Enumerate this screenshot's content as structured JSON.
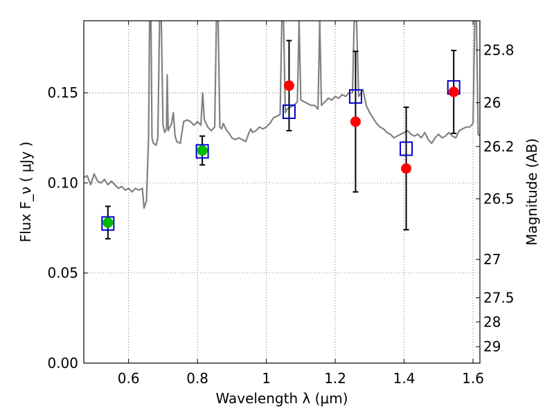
{
  "chart_data": {
    "type": "scatter",
    "title": "",
    "xlabel": "Wavelength  λ (μm)",
    "ylabel": "Flux  F_ν  ( μJy )",
    "ylabel_right": "Magnitude (AB)",
    "xlim": [
      0.47,
      1.62
    ],
    "ylim": [
      0.0,
      0.19
    ],
    "grid": true,
    "x_ticks": [
      0.6,
      0.8,
      1.0,
      1.2,
      1.4,
      1.6
    ],
    "x_tick_labels": [
      "0.6",
      "0.8",
      "1",
      "1.2",
      "1.4",
      "1.6"
    ],
    "y_ticks": [
      0.0,
      0.05,
      0.1,
      0.15
    ],
    "y_tick_labels": [
      "0.00",
      "0.05",
      "0.10",
      "0.15"
    ],
    "right_ticks": [
      25.8,
      26.0,
      26.2,
      26.5,
      27.0,
      27.5,
      28.0,
      29.0
    ],
    "right_tick_labels": [
      "25.8",
      "26",
      "26.2",
      "26.5",
      "27",
      "27.5",
      "28",
      "29"
    ],
    "colors": {
      "sed": "#808080",
      "observed_optical": "#00bb00",
      "observed_nir": "#ff0000",
      "model_box": "#0000cc",
      "errorbar": "#000000",
      "grid": "#555555"
    },
    "series": [
      {
        "kind": "line",
        "description": "template SED",
        "points": [
          [
            0.47,
            0.103
          ],
          [
            0.48,
            0.104
          ],
          [
            0.49,
            0.099
          ],
          [
            0.5,
            0.105
          ],
          [
            0.51,
            0.101
          ],
          [
            0.52,
            0.1
          ],
          [
            0.53,
            0.102
          ],
          [
            0.54,
            0.099
          ],
          [
            0.55,
            0.101
          ],
          [
            0.56,
            0.099
          ],
          [
            0.57,
            0.097
          ],
          [
            0.58,
            0.098
          ],
          [
            0.59,
            0.096
          ],
          [
            0.6,
            0.097
          ],
          [
            0.61,
            0.095
          ],
          [
            0.62,
            0.097
          ],
          [
            0.63,
            0.096
          ],
          [
            0.64,
            0.097
          ],
          [
            0.645,
            0.086
          ],
          [
            0.652,
            0.09
          ],
          [
            0.658,
            0.125
          ],
          [
            0.661,
            0.19
          ],
          [
            0.665,
            0.19
          ],
          [
            0.668,
            0.125
          ],
          [
            0.672,
            0.122
          ],
          [
            0.68,
            0.121
          ],
          [
            0.685,
            0.125
          ],
          [
            0.69,
            0.19
          ],
          [
            0.695,
            0.19
          ],
          [
            0.7,
            0.132
          ],
          [
            0.705,
            0.128
          ],
          [
            0.71,
            0.13
          ],
          [
            0.712,
            0.16
          ],
          [
            0.715,
            0.129
          ],
          [
            0.72,
            0.131
          ],
          [
            0.725,
            0.133
          ],
          [
            0.73,
            0.139
          ],
          [
            0.735,
            0.126
          ],
          [
            0.74,
            0.123
          ],
          [
            0.75,
            0.122
          ],
          [
            0.76,
            0.134
          ],
          [
            0.77,
            0.135
          ],
          [
            0.78,
            0.134
          ],
          [
            0.79,
            0.132
          ],
          [
            0.8,
            0.134
          ],
          [
            0.81,
            0.132
          ],
          [
            0.815,
            0.15
          ],
          [
            0.82,
            0.135
          ],
          [
            0.83,
            0.131
          ],
          [
            0.84,
            0.129
          ],
          [
            0.85,
            0.131
          ],
          [
            0.855,
            0.19
          ],
          [
            0.86,
            0.19
          ],
          [
            0.865,
            0.131
          ],
          [
            0.87,
            0.13
          ],
          [
            0.875,
            0.133
          ],
          [
            0.88,
            0.131
          ],
          [
            0.885,
            0.129
          ],
          [
            0.89,
            0.128
          ],
          [
            0.9,
            0.125
          ],
          [
            0.91,
            0.124
          ],
          [
            0.92,
            0.125
          ],
          [
            0.93,
            0.124
          ],
          [
            0.94,
            0.123
          ],
          [
            0.95,
            0.128
          ],
          [
            0.955,
            0.13
          ],
          [
            0.96,
            0.128
          ],
          [
            0.97,
            0.129
          ],
          [
            0.98,
            0.131
          ],
          [
            0.99,
            0.13
          ],
          [
            1.0,
            0.131
          ],
          [
            1.01,
            0.133
          ],
          [
            1.02,
            0.136
          ],
          [
            1.03,
            0.137
          ],
          [
            1.04,
            0.138
          ],
          [
            1.045,
            0.19
          ],
          [
            1.05,
            0.19
          ],
          [
            1.055,
            0.139
          ],
          [
            1.06,
            0.141
          ],
          [
            1.08,
            0.143
          ],
          [
            1.09,
            0.145
          ],
          [
            1.095,
            0.19
          ],
          [
            1.1,
            0.146
          ],
          [
            1.12,
            0.144
          ],
          [
            1.13,
            0.143
          ],
          [
            1.14,
            0.143
          ],
          [
            1.15,
            0.141
          ],
          [
            1.155,
            0.19
          ],
          [
            1.16,
            0.143
          ],
          [
            1.17,
            0.145
          ],
          [
            1.18,
            0.147
          ],
          [
            1.19,
            0.146
          ],
          [
            1.2,
            0.148
          ],
          [
            1.21,
            0.147
          ],
          [
            1.22,
            0.149
          ],
          [
            1.23,
            0.148
          ],
          [
            1.24,
            0.15
          ],
          [
            1.25,
            0.15
          ],
          [
            1.255,
            0.19
          ],
          [
            1.262,
            0.19
          ],
          [
            1.268,
            0.148
          ],
          [
            1.275,
            0.15
          ],
          [
            1.28,
            0.152
          ],
          [
            1.29,
            0.143
          ],
          [
            1.3,
            0.139
          ],
          [
            1.31,
            0.136
          ],
          [
            1.32,
            0.133
          ],
          [
            1.33,
            0.131
          ],
          [
            1.34,
            0.13
          ],
          [
            1.35,
            0.128
          ],
          [
            1.36,
            0.127
          ],
          [
            1.37,
            0.125
          ],
          [
            1.38,
            0.126
          ],
          [
            1.39,
            0.127
          ],
          [
            1.4,
            0.128
          ],
          [
            1.41,
            0.129
          ],
          [
            1.42,
            0.127
          ],
          [
            1.43,
            0.126
          ],
          [
            1.44,
            0.127
          ],
          [
            1.45,
            0.125
          ],
          [
            1.46,
            0.128
          ],
          [
            1.47,
            0.124
          ],
          [
            1.48,
            0.122
          ],
          [
            1.49,
            0.125
          ],
          [
            1.5,
            0.127
          ],
          [
            1.51,
            0.125
          ],
          [
            1.52,
            0.126
          ],
          [
            1.53,
            0.128
          ],
          [
            1.54,
            0.126
          ],
          [
            1.55,
            0.125
          ],
          [
            1.56,
            0.129
          ],
          [
            1.57,
            0.13
          ],
          [
            1.58,
            0.131
          ],
          [
            1.59,
            0.131
          ],
          [
            1.6,
            0.133
          ],
          [
            1.605,
            0.19
          ],
          [
            1.61,
            0.19
          ],
          [
            1.615,
            0.127
          ],
          [
            1.62,
            0.126
          ]
        ]
      },
      {
        "kind": "errorbar",
        "description": "observed optical",
        "marker": "circle",
        "points": [
          {
            "x": 0.54,
            "y": 0.078,
            "err": 0.009
          },
          {
            "x": 0.814,
            "y": 0.118,
            "err": 0.008
          }
        ]
      },
      {
        "kind": "errorbar",
        "description": "observed near-IR",
        "marker": "circle",
        "points": [
          {
            "x": 1.066,
            "y": 0.154,
            "err": 0.025
          },
          {
            "x": 1.259,
            "y": 0.134,
            "err": 0.039
          },
          {
            "x": 1.406,
            "y": 0.108,
            "err": 0.034
          },
          {
            "x": 1.544,
            "y": 0.1505,
            "err": 0.023
          }
        ]
      },
      {
        "kind": "scatter",
        "description": "model fluxes",
        "marker": "square",
        "points": [
          {
            "x": 0.54,
            "y": 0.0775
          },
          {
            "x": 0.814,
            "y": 0.1175
          },
          {
            "x": 1.066,
            "y": 0.1395
          },
          {
            "x": 1.259,
            "y": 0.148
          },
          {
            "x": 1.406,
            "y": 0.119
          },
          {
            "x": 1.544,
            "y": 0.153
          }
        ]
      }
    ]
  }
}
